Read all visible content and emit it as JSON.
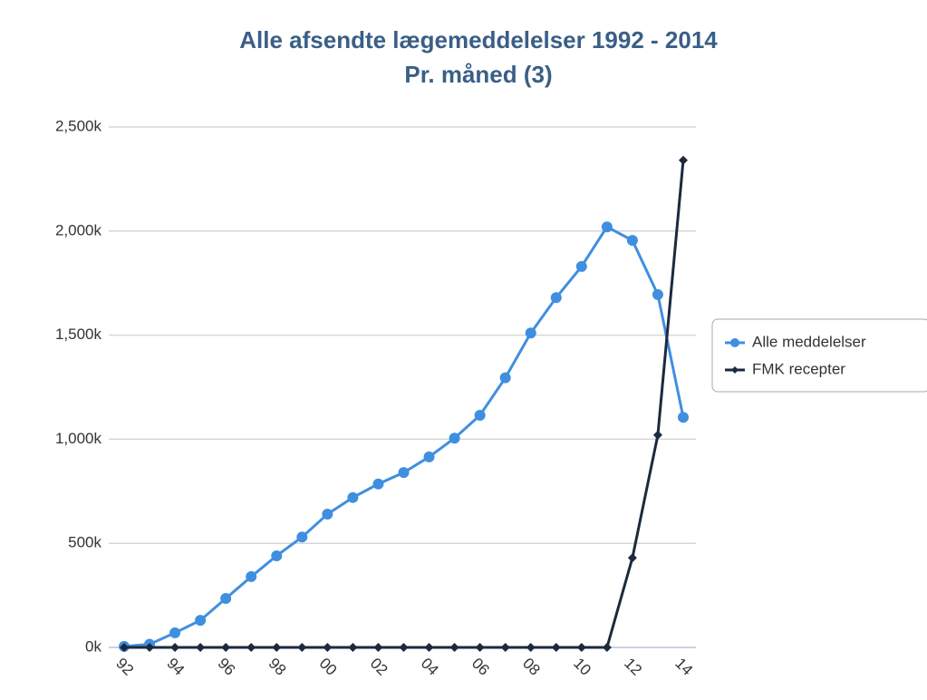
{
  "chart_data": {
    "type": "line",
    "title": "Alle afsendte lægemeddelelser 1992 - 2014",
    "subtitle": "Pr. måned (3)",
    "categories": [
      "92",
      null,
      "94",
      null,
      "96",
      null,
      "98",
      null,
      "00",
      null,
      "02",
      null,
      "04",
      null,
      "06",
      null,
      "08",
      null,
      "10",
      null,
      "12",
      null,
      "14"
    ],
    "series": [
      {
        "name": "Alle meddelelser",
        "color": "#3f8fe0",
        "values": [
          5,
          15,
          70,
          130,
          235,
          340,
          440,
          530,
          640,
          720,
          785,
          840,
          915,
          1005,
          1115,
          1295,
          1510,
          1680,
          1830,
          2020,
          1955,
          1695,
          1105
        ]
      },
      {
        "name": "FMK recepter",
        "color": "#1c2a3d",
        "values": [
          0,
          0,
          0,
          0,
          0,
          0,
          0,
          0,
          0,
          0,
          0,
          0,
          0,
          0,
          0,
          0,
          0,
          0,
          0,
          0,
          430,
          1020,
          2340
        ]
      }
    ],
    "ylim": [
      0,
      2500
    ],
    "yticks": [
      {
        "value": 0,
        "label": "0k"
      },
      {
        "value": 500,
        "label": "500k"
      },
      {
        "value": 1000,
        "label": "1,000k"
      },
      {
        "value": 1500,
        "label": "1,500k"
      },
      {
        "value": 2000,
        "label": "2,000k"
      },
      {
        "value": 2500,
        "label": "2,500k"
      }
    ],
    "grid": true,
    "legend": "right"
  }
}
